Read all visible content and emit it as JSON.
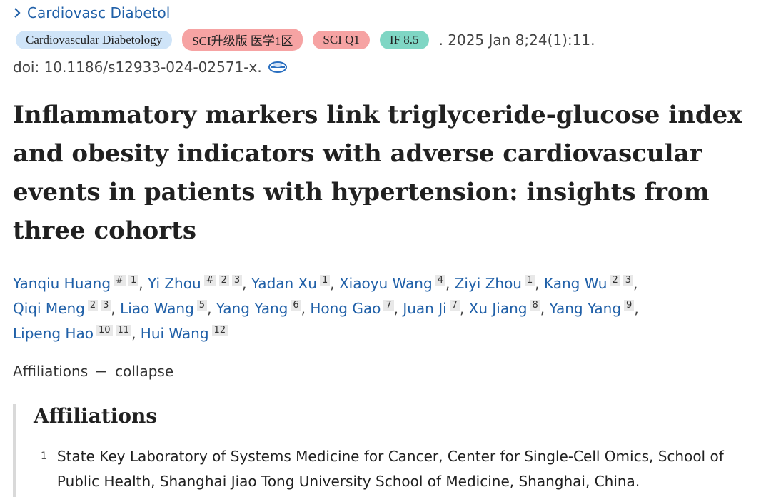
{
  "journal": {
    "link": "Cardiovasc Diabetol",
    "badges": [
      {
        "text": "Cardiovascular Diabetology",
        "color": "#cfe4f8"
      },
      {
        "text": "SCI升级版 医学1区",
        "color": "#f6a3a3"
      },
      {
        "text": "SCI Q1",
        "color": "#f6a3a3"
      },
      {
        "text": "IF 8.5",
        "color": "#7fd6c4"
      }
    ],
    "citation": ". 2025 Jan 8;24(1):11.",
    "doi": "doi: 10.1186/s12933-024-02571-x."
  },
  "title": "Inflammatory markers link triglyceride-glucose index and obesity indicators with adverse cardiovascular events in patients with hypertension: insights from three cohorts",
  "authors": {
    "separator": ",",
    "list": [
      {
        "name": "Yanqiu Huang",
        "sups": [
          "#",
          "1"
        ]
      },
      {
        "name": "Yi Zhou",
        "sups": [
          "#",
          "2",
          "3"
        ]
      },
      {
        "name": "Yadan Xu",
        "sups": [
          "1"
        ]
      },
      {
        "name": "Xiaoyu Wang",
        "sups": [
          "4"
        ]
      },
      {
        "name": "Ziyi Zhou",
        "sups": [
          "1"
        ]
      },
      {
        "name": "Kang Wu",
        "sups": [
          "2",
          "3"
        ]
      },
      {
        "name": "Qiqi Meng",
        "sups": [
          "2",
          "3"
        ]
      },
      {
        "name": "Liao Wang",
        "sups": [
          "5"
        ]
      },
      {
        "name": "Yang Yang",
        "sups": [
          "6"
        ]
      },
      {
        "name": "Hong Gao",
        "sups": [
          "7"
        ]
      },
      {
        "name": "Juan Ji",
        "sups": [
          "7"
        ]
      },
      {
        "name": "Xu Jiang",
        "sups": [
          "8"
        ]
      },
      {
        "name": "Yang Yang",
        "sups": [
          "9"
        ]
      },
      {
        "name": "Lipeng Hao",
        "sups": [
          "10",
          "11"
        ]
      },
      {
        "name": "Hui Wang",
        "sups": [
          "12"
        ]
      }
    ]
  },
  "affiliations_toggle": {
    "label": "Affiliations",
    "action": "collapse"
  },
  "affiliations": {
    "heading": "Affiliations",
    "items": [
      {
        "number": "1",
        "text": "State Key Laboratory of Systems Medicine for Cancer, Center for Single-Cell Omics, School of Public Health, Shanghai Jiao Tong University School of Medicine, Shanghai, China."
      }
    ]
  }
}
